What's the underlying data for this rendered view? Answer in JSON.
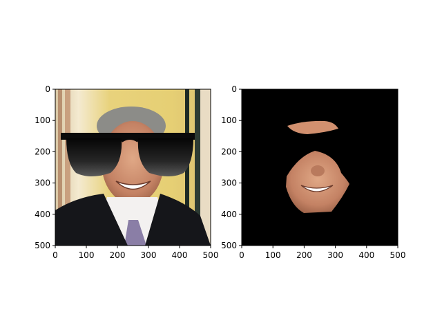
{
  "panels": [
    {
      "name": "left",
      "content": "photo of smiling man in suit wearing black sunglasses overlay",
      "x_ticks": [
        "0",
        "100",
        "200",
        "300",
        "400",
        "500"
      ],
      "y_ticks": [
        "0",
        "100",
        "200",
        "300",
        "400",
        "500"
      ],
      "xlim": [
        0,
        500
      ],
      "ylim": [
        500,
        0
      ]
    },
    {
      "name": "right",
      "content": "masked face region on black background",
      "x_ticks": [
        "0",
        "100",
        "200",
        "300",
        "400",
        "500"
      ],
      "y_ticks": [
        "0",
        "100",
        "200",
        "300",
        "400",
        "500"
      ],
      "xlim": [
        0,
        500
      ],
      "ylim": [
        500,
        0
      ]
    }
  ],
  "colors": {
    "background": "#ffffff",
    "mask_background": "#000000",
    "wall": "#e6cf7a",
    "suit": "#15161a",
    "skin": "#c58a6a",
    "lens": "#111111"
  }
}
